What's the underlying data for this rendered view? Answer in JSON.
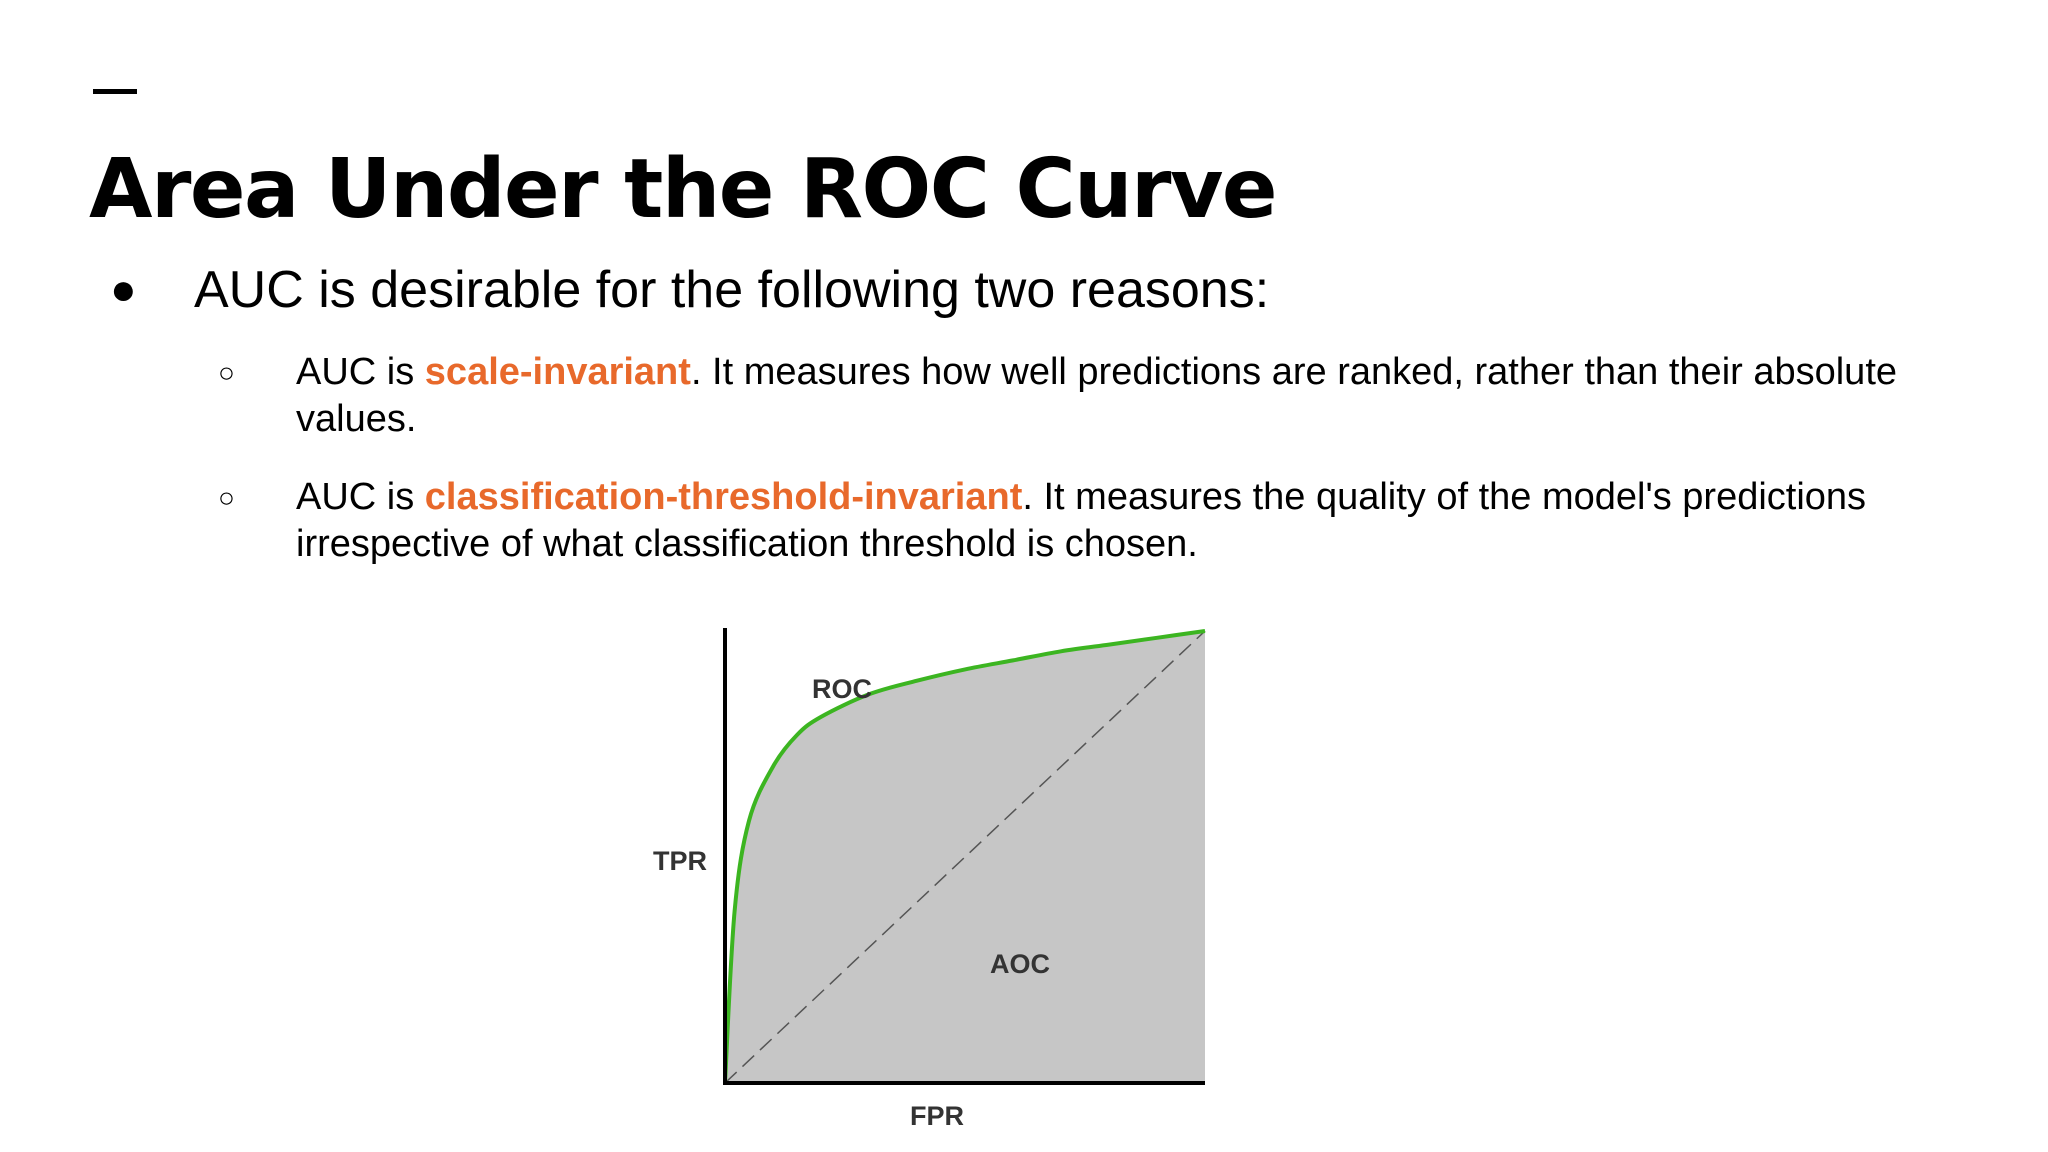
{
  "slide": {
    "title": "Area Under the ROC Curve",
    "bullet": {
      "marker": "●",
      "text": "AUC is desirable for the following two reasons:"
    },
    "sub_items": [
      {
        "marker": "○",
        "prefix": "AUC is ",
        "highlight": "scale-invariant",
        "suffix": ". It measures how well predictions are ranked, rather than their absolute values."
      },
      {
        "marker": "○",
        "prefix": "AUC is ",
        "highlight": "classification-threshold-invariant",
        "suffix": ". It measures the quality of the model's predictions irrespective of what classification threshold is chosen."
      }
    ],
    "colors": {
      "highlight": "#e8692b",
      "curve": "#3cb521",
      "area_fill": "#c6c6c6"
    }
  },
  "chart_data": {
    "type": "area",
    "xlabel": "FPR",
    "ylabel": "TPR",
    "xlim": [
      0,
      1
    ],
    "ylim": [
      0,
      1
    ],
    "grid": false,
    "series": [
      {
        "name": "ROC",
        "x": [
          0,
          0.02,
          0.05,
          0.1,
          0.15,
          0.2,
          0.3,
          0.4,
          0.5,
          0.6,
          0.7,
          0.8,
          0.9,
          1.0
        ],
        "y": [
          0,
          0.38,
          0.58,
          0.7,
          0.77,
          0.81,
          0.86,
          0.89,
          0.915,
          0.935,
          0.955,
          0.97,
          0.985,
          1.0
        ]
      }
    ],
    "diagonal": {
      "x": [
        0,
        1
      ],
      "y": [
        0,
        1
      ],
      "style": "dashed"
    },
    "annotations": [
      "ROC",
      "AOC"
    ]
  }
}
